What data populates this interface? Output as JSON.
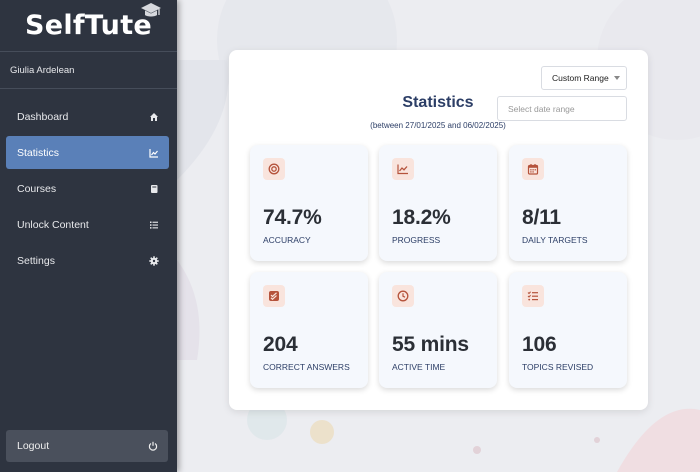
{
  "brand": {
    "name": "SelfTute"
  },
  "user": {
    "name": "Giulia Ardelean"
  },
  "nav": {
    "items": [
      {
        "label": "Dashboard",
        "icon": "home-icon"
      },
      {
        "label": "Statistics",
        "icon": "chart-icon",
        "active": true
      },
      {
        "label": "Courses",
        "icon": "book-icon"
      },
      {
        "label": "Unlock Content",
        "icon": "list-icon"
      },
      {
        "label": "Settings",
        "icon": "gear-icon"
      }
    ],
    "logout_label": "Logout"
  },
  "stats": {
    "range_label": "Custom Range",
    "date_placeholder": "Select date range",
    "title": "Statistics",
    "subtitle": "(between 27/01/2025 and 06/02/2025)",
    "tiles": [
      {
        "value": "74.7%",
        "label": "ACCURACY",
        "icon": "target-icon"
      },
      {
        "value": "18.2%",
        "label": "PROGRESS",
        "icon": "trend-icon"
      },
      {
        "value": "8/11",
        "label": "DAILY TARGETS",
        "icon": "calendar-icon"
      },
      {
        "value": "204",
        "label": "CORRECT ANSWERS",
        "icon": "double-check-icon"
      },
      {
        "value": "55 mins",
        "label": "ACTIVE TIME",
        "icon": "clock-icon"
      },
      {
        "value": "106",
        "label": "TOPICS REVISED",
        "icon": "checklist-icon"
      }
    ]
  },
  "colors": {
    "sidebar": "#2e3440",
    "active": "#5a80b8",
    "accent_text": "#2c3e66",
    "icon_bg": "#f9e4dd",
    "icon_fg": "#b5533c"
  }
}
